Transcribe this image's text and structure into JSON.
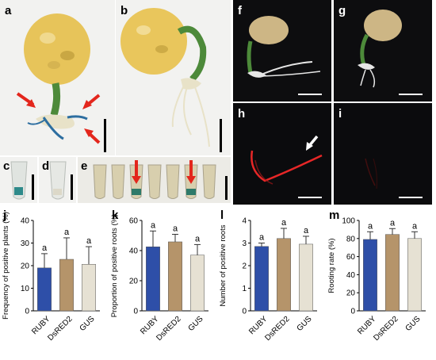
{
  "figure": {
    "panels": {
      "a": "a",
      "b": "b",
      "c": "c",
      "d": "d",
      "e": "e",
      "f": "f",
      "g": "g",
      "h": "h",
      "i": "i"
    },
    "colors": {
      "ruby": "#2e4fa8",
      "dsred2": "#b5946a",
      "gus": "#e6e1d3",
      "photo_bg": "#f2f2f0",
      "dark_bg": "#0d0d0f",
      "fluor": "#ff2a2a",
      "arrow_red": "#e3261c",
      "tuber": "#e7c45a",
      "stem": "#4d8a3a"
    }
  },
  "chart_data": [
    {
      "id": "j",
      "panel_label": "j",
      "type": "bar",
      "categories": [
        "RUBY",
        "DsRED2",
        "GUS"
      ],
      "values": [
        19,
        22.8,
        20.6
      ],
      "errors": [
        6.3,
        9.5,
        7.8
      ],
      "significance": [
        "a",
        "a",
        "a"
      ],
      "ylabel": "Frequency of positive plants (%)",
      "ylim": [
        0,
        40
      ],
      "yticks": [
        "0",
        "10",
        "20",
        "30",
        "40"
      ]
    },
    {
      "id": "k",
      "panel_label": "k",
      "type": "bar",
      "categories": [
        "RUBY",
        "DsRED2",
        "GUS"
      ],
      "values": [
        42.5,
        45.8,
        37
      ],
      "errors": [
        10.5,
        5,
        7
      ],
      "significance": [
        "a",
        "a",
        "a"
      ],
      "ylabel": "Proportion of positive roots (%)",
      "ylim": [
        0,
        60
      ],
      "yticks": [
        "0",
        "20",
        "40",
        "60"
      ]
    },
    {
      "id": "l",
      "panel_label": "l",
      "type": "bar",
      "categories": [
        "RUBY",
        "DsRED2",
        "GUS"
      ],
      "values": [
        2.85,
        3.2,
        2.95
      ],
      "errors": [
        0.15,
        0.45,
        0.35
      ],
      "significance": [
        "a",
        "a",
        "a"
      ],
      "ylabel": "Number of positive roots",
      "ylim": [
        0,
        4
      ],
      "yticks": [
        "0",
        "1",
        "2",
        "3",
        "4"
      ]
    },
    {
      "id": "m",
      "panel_label": "m",
      "type": "bar",
      "categories": [
        "RUBY",
        "DsRED2",
        "GUS"
      ],
      "values": [
        79,
        84.5,
        80
      ],
      "errors": [
        8.5,
        6.5,
        7.5
      ],
      "significance": [
        "a",
        "a",
        "a"
      ],
      "ylabel": "Rooting rate (%)",
      "ylim": [
        0,
        100
      ],
      "yticks": [
        "0",
        "20",
        "40",
        "60",
        "80",
        "100"
      ]
    }
  ]
}
